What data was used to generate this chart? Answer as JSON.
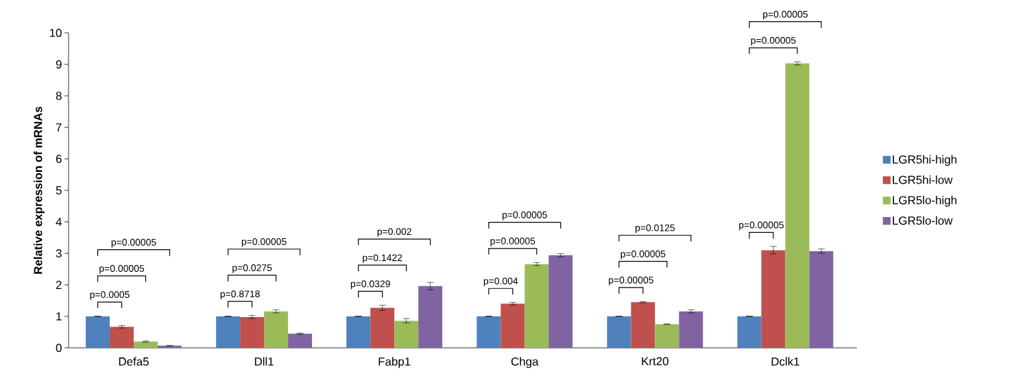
{
  "chart_data": {
    "type": "bar",
    "ylabel": "Relative expression of mRNAs",
    "categories": [
      "Defa5",
      "Dll1",
      "Fabp1",
      "Chga",
      "Krt20",
      "Dclk1"
    ],
    "series": [
      {
        "name": "LGR5hi-high",
        "color": "#4f81bd",
        "values": [
          1,
          1,
          1,
          1,
          1,
          1
        ],
        "errors": [
          0.01,
          0.01,
          0.01,
          0.01,
          0.01,
          0.01
        ]
      },
      {
        "name": "LGR5hi-low",
        "color": "#c0504d",
        "values": [
          0.67,
          0.98,
          1.27,
          1.4,
          1.45,
          3.1
        ],
        "errors": [
          0.04,
          0.05,
          0.08,
          0.04,
          0.02,
          0.12
        ]
      },
      {
        "name": "LGR5lo-high",
        "color": "#9bbb59",
        "values": [
          0.2,
          1.16,
          0.86,
          2.66,
          0.75,
          9.03
        ],
        "errors": [
          0.02,
          0.05,
          0.07,
          0.05,
          0.01,
          0.05
        ]
      },
      {
        "name": "LGR5lo-low",
        "color": "#8064a2",
        "values": [
          0.07,
          0.45,
          1.96,
          2.94,
          1.16,
          3.07
        ],
        "errors": [
          0.01,
          0.02,
          0.12,
          0.05,
          0.05,
          0.07
        ]
      }
    ],
    "ylim": [
      0,
      10
    ],
    "yticks": [
      0,
      1,
      2,
      3,
      4,
      5,
      6,
      7,
      8,
      9,
      10
    ],
    "legend": "right",
    "annotations": [
      "p=0.0005",
      "p=0.00005",
      "p=0.00005",
      "p=0.8718",
      "p=0.0275",
      "p=0.00005",
      "p=0.0329",
      "p=0.1422",
      "p=0.002",
      "p=0.004",
      "p=0.00005",
      "p=0.00005",
      "p=0.00005",
      "p=0.00005",
      "p=0.0125",
      "p=0.00005",
      "p=0.00005",
      "p=0.00005"
    ]
  }
}
